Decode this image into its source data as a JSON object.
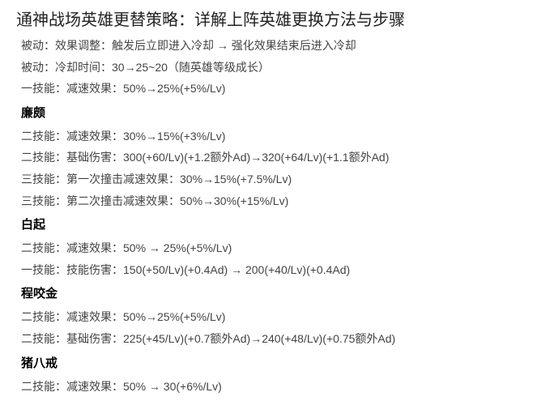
{
  "title": "通神战场英雄更替策略：详解上阵英雄更换方法与步骤",
  "lines": [
    {
      "text": "被动：效果调整：触发后立即进入冷却 → 强化效果结束后进入冷却",
      "type": "line"
    },
    {
      "text": "被动：冷却时间：30→25~20（随英雄等级成长）",
      "type": "line"
    },
    {
      "text": "一技能：减速效果：50%→25%(+5%/Lv)",
      "type": "line"
    },
    {
      "text": "廉颇",
      "type": "hero"
    },
    {
      "text": "二技能：减速效果：30%→15%(+3%/Lv)",
      "type": "line"
    },
    {
      "text": "二技能：基础伤害：300(+60/Lv)(+1.2额外Ad)→320(+64/Lv)(+1.1额外Ad)",
      "type": "line"
    },
    {
      "text": "三技能：第一次撞击减速效果：30%→15%(+7.5%/Lv)",
      "type": "line"
    },
    {
      "text": "三技能：第二次撞击减速效果：50%→30%(+15%/Lv)",
      "type": "line"
    },
    {
      "text": "白起",
      "type": "hero"
    },
    {
      "text": "二技能：减速效果：50% → 25%(+5%/Lv)",
      "type": "line"
    },
    {
      "text": "一技能：技能伤害：150(+50/Lv)(+0.4Ad) → 200(+40/Lv)(+0.4Ad)",
      "type": "line"
    },
    {
      "text": "程咬金",
      "type": "hero"
    },
    {
      "text": "二技能：减速效果：50%→25%(+5%/Lv)",
      "type": "line"
    },
    {
      "text": "二技能：基础伤害：225(+45/Lv)(+0.7额外Ad)→240(+48/Lv)(+0.75额外Ad)",
      "type": "line"
    },
    {
      "text": "猪八戒",
      "type": "hero"
    },
    {
      "text": "二技能：减速效果：50% → 30(+6%/Lv)",
      "type": "line"
    }
  ]
}
